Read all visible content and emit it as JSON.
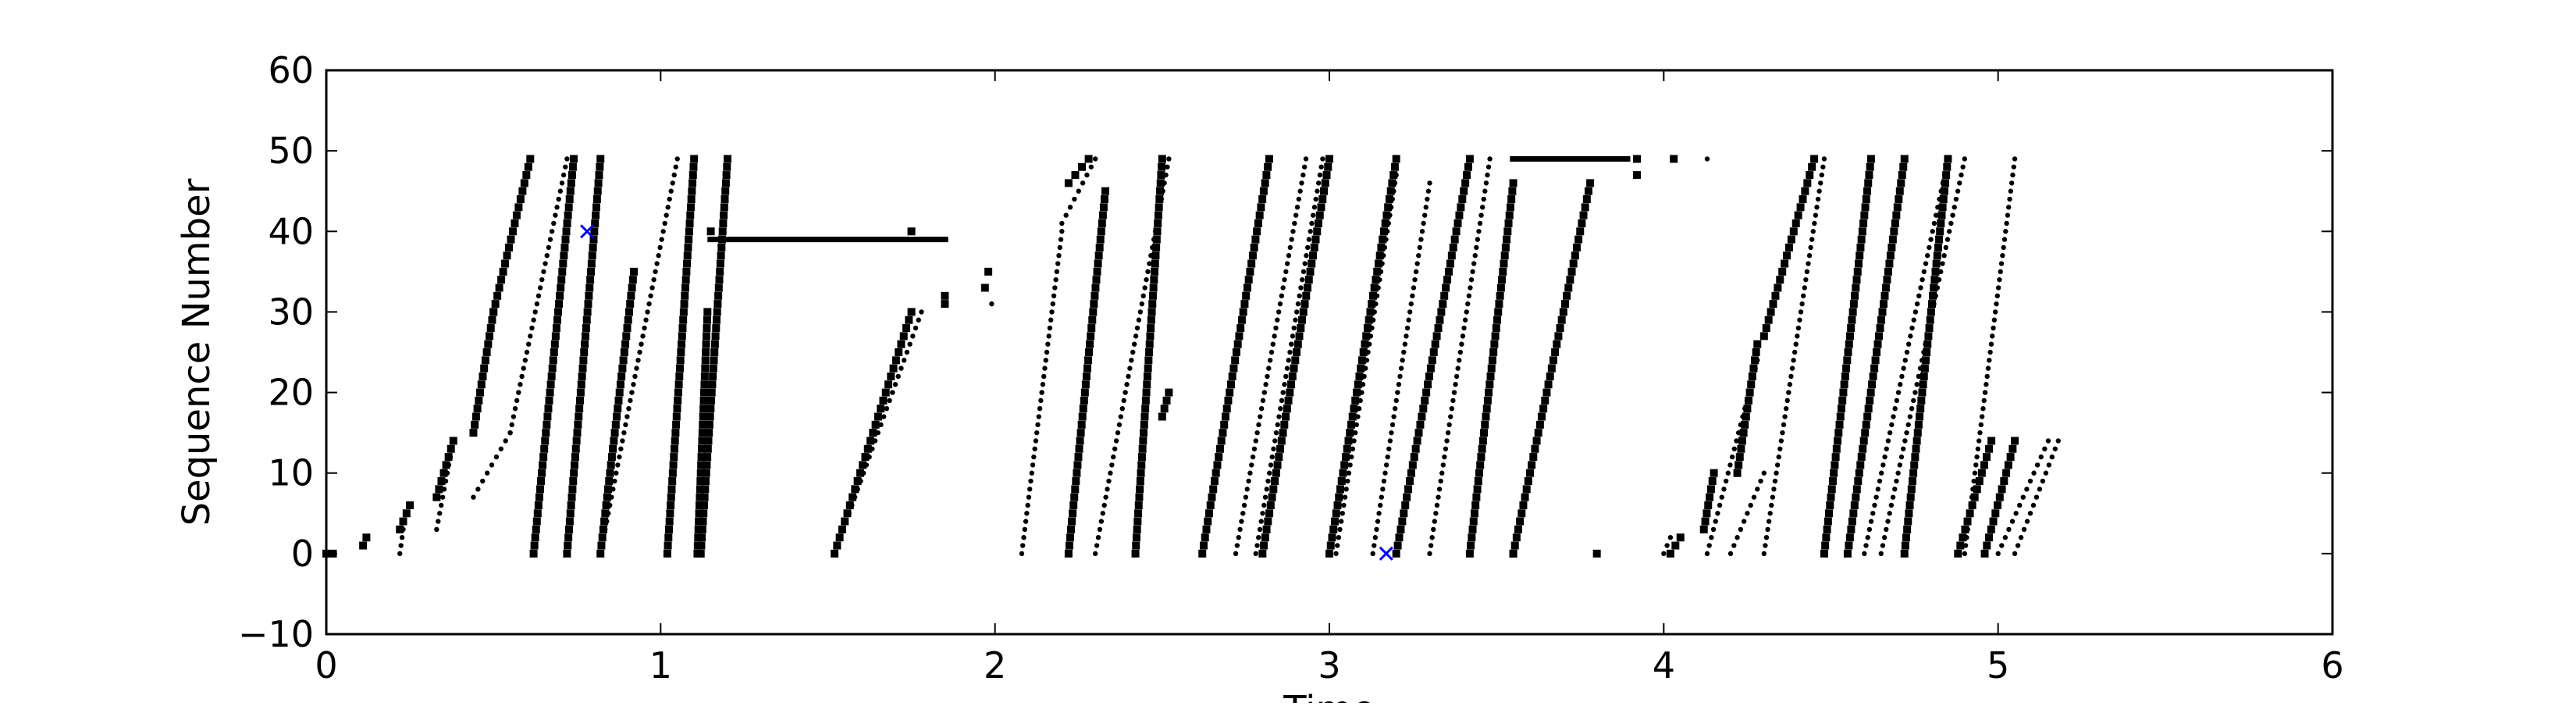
{
  "chart_data": {
    "type": "scatter",
    "title": "",
    "xlabel": "Time",
    "ylabel": "Sequence Number",
    "xlim": [
      0,
      6
    ],
    "ylim": [
      -10,
      60
    ],
    "xticks": [
      "0",
      "1",
      "2",
      "3",
      "4",
      "5",
      "6"
    ],
    "yticks": [
      "−10",
      "0",
      "10",
      "20",
      "30",
      "40",
      "50",
      "60"
    ],
    "grid": false,
    "legend": "none",
    "series": [
      {
        "marker": "square",
        "color": "#000000",
        "segments": [
          [
            0.0,
            0,
            0.02,
            0
          ],
          [
            0.11,
            1,
            0.12,
            2
          ],
          [
            0.22,
            3,
            0.25,
            6
          ],
          [
            0.33,
            7,
            0.38,
            14
          ],
          [
            0.44,
            15,
            0.5,
            30
          ],
          [
            0.5,
            30,
            0.61,
            49
          ],
          [
            0.62,
            0,
            0.74,
            49
          ],
          [
            0.72,
            0,
            0.82,
            49
          ],
          [
            0.82,
            0,
            0.92,
            35
          ],
          [
            1.02,
            0,
            1.1,
            49
          ],
          [
            1.11,
            0,
            1.14,
            30
          ],
          [
            1.12,
            0,
            1.2,
            49
          ],
          [
            1.52,
            0,
            1.75,
            30
          ],
          [
            2.22,
            0,
            2.33,
            45
          ],
          [
            2.22,
            46,
            2.28,
            49
          ],
          [
            2.42,
            0,
            2.5,
            49
          ],
          [
            2.5,
            17,
            2.52,
            20
          ],
          [
            2.62,
            0,
            2.82,
            49
          ],
          [
            2.8,
            0,
            3.0,
            49
          ],
          [
            3.0,
            0,
            3.2,
            49
          ],
          [
            3.2,
            0,
            3.42,
            49
          ],
          [
            3.42,
            0,
            3.55,
            46
          ],
          [
            3.55,
            0,
            3.78,
            46
          ],
          [
            4.02,
            0,
            4.05,
            2
          ],
          [
            4.12,
            3,
            4.15,
            10
          ],
          [
            4.22,
            10,
            4.28,
            26
          ],
          [
            4.3,
            27,
            4.45,
            49
          ],
          [
            4.48,
            0,
            4.62,
            49
          ],
          [
            4.55,
            0,
            4.72,
            49
          ],
          [
            4.72,
            0,
            4.85,
            49
          ],
          [
            4.88,
            0,
            4.98,
            14
          ],
          [
            4.96,
            0,
            5.05,
            14
          ]
        ],
        "points": [
          [
            1.15,
            40
          ],
          [
            1.75,
            40
          ],
          [
            1.85,
            31
          ],
          [
            1.85,
            32
          ],
          [
            1.97,
            33
          ],
          [
            1.98,
            35
          ],
          [
            3.55,
            0
          ],
          [
            3.8,
            0
          ],
          [
            3.92,
            47
          ],
          [
            3.92,
            49
          ],
          [
            4.03,
            49
          ]
        ],
        "flats": [
          [
            1.14,
            1.86,
            39
          ],
          [
            3.54,
            3.9,
            49
          ]
        ]
      },
      {
        "marker": "dot",
        "color": "#000000",
        "segments": [
          [
            0.22,
            0,
            0.23,
            3
          ],
          [
            0.33,
            3,
            0.38,
            14
          ],
          [
            0.44,
            7,
            0.55,
            15
          ],
          [
            0.55,
            15,
            0.72,
            49
          ],
          [
            0.82,
            0,
            1.05,
            49
          ],
          [
            1.52,
            0,
            1.78,
            30
          ],
          [
            2.08,
            0,
            2.2,
            40
          ],
          [
            2.2,
            41,
            2.3,
            49
          ],
          [
            2.3,
            0,
            2.52,
            49
          ],
          [
            2.72,
            0,
            2.93,
            49
          ],
          [
            2.78,
            0,
            2.98,
            49
          ],
          [
            3.02,
            0,
            3.2,
            47
          ],
          [
            3.13,
            0,
            3.3,
            46
          ],
          [
            3.3,
            0,
            3.48,
            49
          ],
          [
            4.0,
            0,
            4.02,
            2
          ],
          [
            4.13,
            0,
            4.28,
            24
          ],
          [
            4.2,
            0,
            4.3,
            10
          ],
          [
            4.3,
            0,
            4.48,
            49
          ],
          [
            4.6,
            0,
            4.85,
            49
          ],
          [
            4.65,
            0,
            4.9,
            49
          ],
          [
            4.9,
            0,
            5.05,
            49
          ],
          [
            5.0,
            0,
            5.15,
            14
          ],
          [
            5.05,
            0,
            5.18,
            14
          ]
        ],
        "points": [
          [
            1.99,
            31
          ],
          [
            4.13,
            49
          ]
        ],
        "flats": []
      },
      {
        "marker": "x",
        "color": "#0000ff",
        "segments": [],
        "points": [
          [
            0.78,
            40
          ],
          [
            3.17,
            0
          ]
        ],
        "flats": []
      }
    ]
  }
}
